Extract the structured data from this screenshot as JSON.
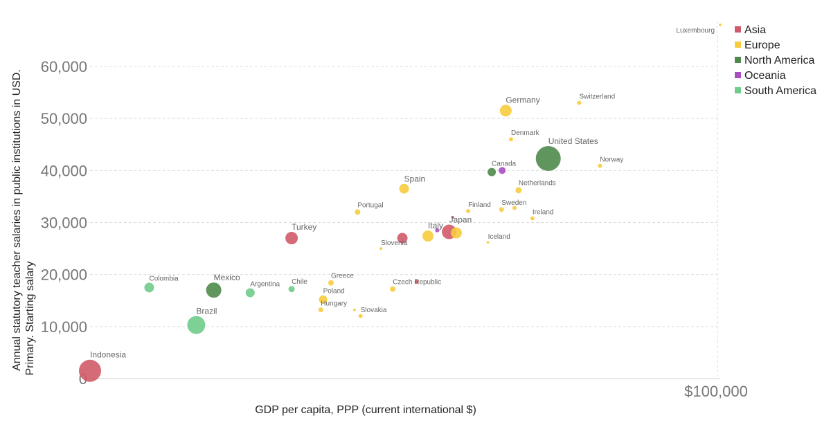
{
  "chart_data": {
    "type": "scatter",
    "title": "",
    "xlabel": "GDP per capita, PPP (current international $)",
    "ylabel_lines": [
      "Annual statutory teacher salaries in public institutions in USD.",
      "Primary. Starting salary"
    ],
    "xlim": [
      0,
      100000
    ],
    "ylim": [
      0,
      70000
    ],
    "log_x": true,
    "x_tick_labels": [
      "$100,000"
    ],
    "y_ticks": [
      0,
      10000,
      20000,
      30000,
      40000,
      50000,
      60000
    ],
    "y_tick_labels": [
      "0",
      "10,000",
      "20,000",
      "30,000",
      "40,000",
      "50,000",
      "60,000"
    ],
    "grid": true,
    "legend_position": "top-right",
    "colors": {
      "Asia": "#d05b68",
      "Europe": "#f7cc3d",
      "North America": "#4f8a4d",
      "Oceania": "#a74fc0",
      "South America": "#6fcc8a"
    },
    "legend": [
      "Asia",
      "Europe",
      "North America",
      "Oceania",
      "South America"
    ],
    "points": [
      {
        "label": "Indonesia",
        "region": "Asia",
        "x": 10600,
        "y": 1500,
        "size": 16
      },
      {
        "label": "Colombia",
        "region": "South America",
        "x": 13100,
        "y": 17500,
        "size": 7
      },
      {
        "label": "Brazil",
        "region": "South America",
        "x": 15500,
        "y": 10300,
        "size": 13
      },
      {
        "label": "Mexico",
        "region": "North America",
        "x": 16500,
        "y": 17000,
        "size": 11
      },
      {
        "label": "Argentina",
        "region": "South America",
        "x": 18800,
        "y": 16500,
        "size": 6.5
      },
      {
        "label": "Chile",
        "region": "South America",
        "x": 21800,
        "y": 17200,
        "size": 4.5
      },
      {
        "label": "Turkey",
        "region": "Asia",
        "x": 21800,
        "y": 27000,
        "size": 9
      },
      {
        "label": "Greece",
        "region": "Europe",
        "x": 25100,
        "y": 18400,
        "size": 4
      },
      {
        "label": "Poland",
        "region": "Europe",
        "x": 24400,
        "y": 15200,
        "size": 6
      },
      {
        "label": "Hungary",
        "region": "Europe",
        "x": 24200,
        "y": 13200,
        "size": 3.5
      },
      {
        "label": "Slovakia",
        "region": "Europe",
        "x": 27900,
        "y": 12000,
        "size": 3
      },
      {
        "label": "",
        "region": "Europe",
        "x": 27300,
        "y": 13200,
        "size": 2
      },
      {
        "label": "Portugal",
        "region": "Europe",
        "x": 27600,
        "y": 32000,
        "size": 4
      },
      {
        "label": "Slovenia",
        "region": "Europe",
        "x": 30000,
        "y": 25000,
        "size": 2
      },
      {
        "label": "Czech Republic",
        "region": "Europe",
        "x": 31300,
        "y": 17200,
        "size": 4
      },
      {
        "label": "Spain",
        "region": "Europe",
        "x": 32600,
        "y": 36500,
        "size": 7
      },
      {
        "label": "",
        "region": "Asia",
        "x": 32400,
        "y": 27000,
        "size": 7.5
      },
      {
        "label": "",
        "region": "Asia",
        "x": 34100,
        "y": 18600,
        "size": 3
      },
      {
        "label": "Italy",
        "region": "Europe",
        "x": 35500,
        "y": 27400,
        "size": 8
      },
      {
        "label": "",
        "region": "Oceania",
        "x": 36700,
        "y": 28500,
        "size": 3
      },
      {
        "label": "Japan",
        "region": "Asia",
        "x": 38300,
        "y": 28200,
        "size": 10.5
      },
      {
        "label": "",
        "region": "Europe",
        "x": 39300,
        "y": 28000,
        "size": 8
      },
      {
        "label": "",
        "region": "Asia",
        "x": 38800,
        "y": 31000,
        "size": 2
      },
      {
        "label": "Finland",
        "region": "Europe",
        "x": 41000,
        "y": 32200,
        "size": 3
      },
      {
        "label": "Iceland",
        "region": "Europe",
        "x": 44000,
        "y": 26200,
        "size": 2
      },
      {
        "label": "Canada",
        "region": "North America",
        "x": 44600,
        "y": 39700,
        "size": 6
      },
      {
        "label": "",
        "region": "Oceania",
        "x": 46300,
        "y": 40000,
        "size": 5
      },
      {
        "label": "Germany",
        "region": "Europe",
        "x": 46900,
        "y": 51500,
        "size": 8.5
      },
      {
        "label": "Sweden",
        "region": "Europe",
        "x": 46200,
        "y": 32500,
        "size": 3.5
      },
      {
        "label": "",
        "region": "Europe",
        "x": 48400,
        "y": 32800,
        "size": 3
      },
      {
        "label": "Denmark",
        "region": "Europe",
        "x": 47800,
        "y": 46000,
        "size": 3
      },
      {
        "label": "Netherlands",
        "region": "Europe",
        "x": 49100,
        "y": 36200,
        "size": 4.5
      },
      {
        "label": "Ireland",
        "region": "Europe",
        "x": 51600,
        "y": 30800,
        "size": 3
      },
      {
        "label": "United States",
        "region": "North America",
        "x": 54600,
        "y": 42300,
        "size": 18
      },
      {
        "label": "Switzerland",
        "region": "Europe",
        "x": 61000,
        "y": 53000,
        "size": 3
      },
      {
        "label": "Norway",
        "region": "Europe",
        "x": 65700,
        "y": 40900,
        "size": 3
      },
      {
        "label": "Luxembourg",
        "region": "Europe",
        "x": 101000,
        "y": 68000,
        "size": 2
      }
    ],
    "big_labels": [
      "Indonesia",
      "Brazil",
      "Mexico",
      "Turkey",
      "United States",
      "Germany",
      "Japan",
      "Italy",
      "Spain"
    ]
  }
}
